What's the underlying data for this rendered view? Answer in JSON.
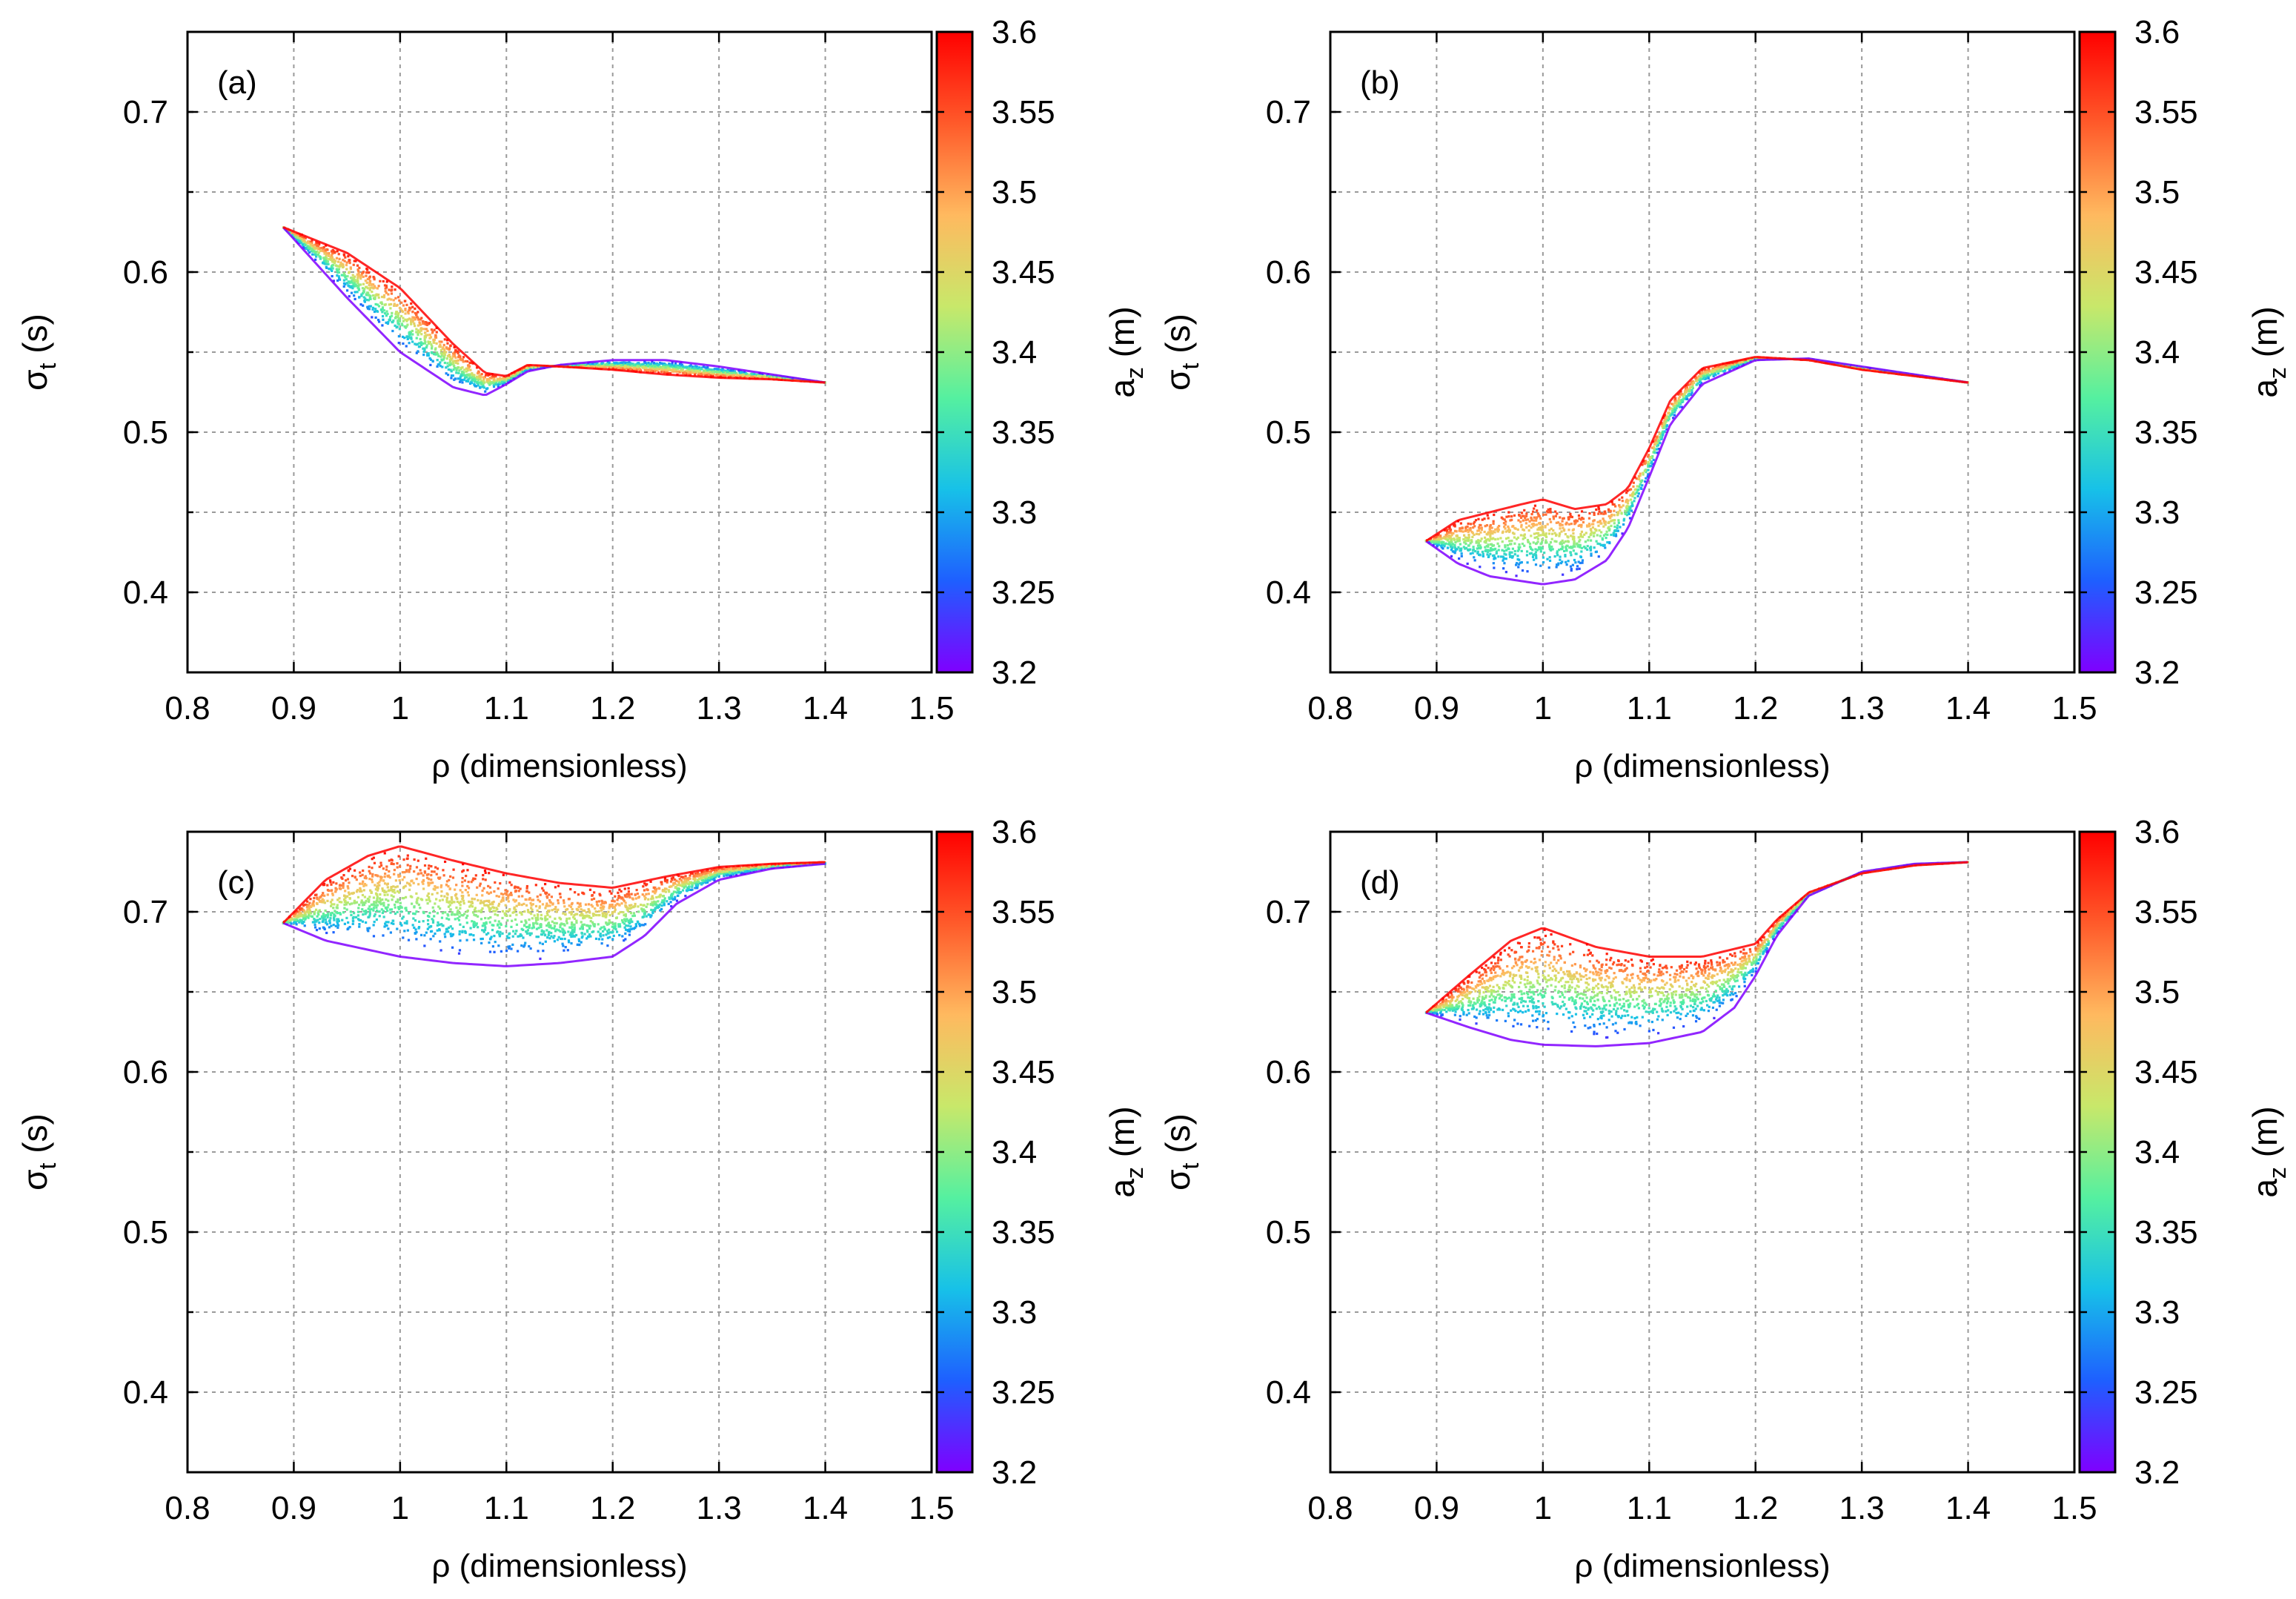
{
  "figure": {
    "panel_count": 4,
    "color_scale": "rainbow",
    "colorscale_stops": [
      "#7f00ff",
      "#1e5fff",
      "#17c1e8",
      "#55f0a0",
      "#c8e86a",
      "#ffb95f",
      "#ff5a2a",
      "#ff0000"
    ]
  },
  "chart_data": [
    {
      "type": "scatter",
      "panel_label": "(a)",
      "xlabel": "ρ (dimensionless)",
      "ylabel": "σt (s)",
      "ylabel_main": "σ",
      "ylabel_sub": "t",
      "ylabel_unit": " (s)",
      "xlim": [
        0.8,
        1.5
      ],
      "ylim": [
        0.35,
        0.75
      ],
      "xticks": [
        0.8,
        0.9,
        1.0,
        1.1,
        1.2,
        1.3,
        1.4,
        1.5
      ],
      "xtick_labels": [
        "0.8",
        "0.9",
        "1",
        "1.1",
        "1.2",
        "1.3",
        "1.4",
        "1.5"
      ],
      "yticks": [
        0.4,
        0.5,
        0.6,
        0.7
      ],
      "ytick_labels": [
        "0.4",
        "0.5",
        "0.6",
        "0.7"
      ],
      "colorbar": {
        "label": "az (m)",
        "label_main": "a",
        "label_sub": "z",
        "label_unit": " (m)",
        "range": [
          3.2,
          3.6
        ],
        "ticks": [
          3.2,
          3.25,
          3.3,
          3.35,
          3.4,
          3.45,
          3.5,
          3.55,
          3.6
        ],
        "tick_labels": [
          "3.2",
          "3.25",
          "3.3",
          "3.35",
          "3.4",
          "3.45",
          "3.5",
          "3.55",
          "3.6"
        ]
      },
      "series": [
        {
          "name": "az = 3.2 m (lower edge)",
          "az": 3.2,
          "x": [
            0.89,
            0.95,
            1.0,
            1.05,
            1.08,
            1.1,
            1.12,
            1.15,
            1.2,
            1.25,
            1.3,
            1.35,
            1.4
          ],
          "y": [
            0.628,
            0.584,
            0.55,
            0.528,
            0.523,
            0.53,
            0.538,
            0.542,
            0.545,
            0.545,
            0.541,
            0.536,
            0.531
          ]
        },
        {
          "name": "az = 3.6 m (upper edge)",
          "az": 3.6,
          "x": [
            0.89,
            0.95,
            1.0,
            1.05,
            1.08,
            1.1,
            1.12,
            1.15,
            1.2,
            1.25,
            1.3,
            1.35,
            1.4
          ],
          "y": [
            0.628,
            0.612,
            0.59,
            0.555,
            0.537,
            0.535,
            0.542,
            0.541,
            0.539,
            0.536,
            0.534,
            0.533,
            0.531
          ]
        }
      ]
    },
    {
      "type": "scatter",
      "panel_label": "(b)",
      "xlabel": "ρ (dimensionless)",
      "ylabel": "σt (s)",
      "ylabel_main": "σ",
      "ylabel_sub": "t",
      "ylabel_unit": " (s)",
      "xlim": [
        0.8,
        1.5
      ],
      "ylim": [
        0.35,
        0.75
      ],
      "xticks": [
        0.8,
        0.9,
        1.0,
        1.1,
        1.2,
        1.3,
        1.4,
        1.5
      ],
      "xtick_labels": [
        "0.8",
        "0.9",
        "1",
        "1.1",
        "1.2",
        "1.3",
        "1.4",
        "1.5"
      ],
      "yticks": [
        0.4,
        0.5,
        0.6,
        0.7
      ],
      "ytick_labels": [
        "0.4",
        "0.5",
        "0.6",
        "0.7"
      ],
      "colorbar": {
        "label": "az (m)",
        "label_main": "a",
        "label_sub": "z",
        "label_unit": " (m)",
        "range": [
          3.2,
          3.6
        ],
        "ticks": [
          3.2,
          3.25,
          3.3,
          3.35,
          3.4,
          3.45,
          3.5,
          3.55,
          3.6
        ],
        "tick_labels": [
          "3.2",
          "3.25",
          "3.3",
          "3.35",
          "3.4",
          "3.45",
          "3.5",
          "3.55",
          "3.6"
        ]
      },
      "series": [
        {
          "name": "az = 3.2 m (lower edge)",
          "az": 3.2,
          "x": [
            0.89,
            0.92,
            0.95,
            1.0,
            1.03,
            1.06,
            1.08,
            1.1,
            1.12,
            1.15,
            1.2,
            1.25,
            1.3,
            1.35,
            1.4
          ],
          "y": [
            0.432,
            0.418,
            0.41,
            0.405,
            0.408,
            0.42,
            0.44,
            0.472,
            0.505,
            0.53,
            0.545,
            0.546,
            0.541,
            0.536,
            0.531
          ]
        },
        {
          "name": "az = 3.6 m (upper edge)",
          "az": 3.6,
          "x": [
            0.89,
            0.92,
            0.95,
            0.98,
            1.0,
            1.03,
            1.06,
            1.08,
            1.1,
            1.12,
            1.15,
            1.2,
            1.25,
            1.3,
            1.35,
            1.4
          ],
          "y": [
            0.432,
            0.445,
            0.45,
            0.455,
            0.458,
            0.452,
            0.455,
            0.465,
            0.49,
            0.52,
            0.54,
            0.547,
            0.545,
            0.539,
            0.535,
            0.531
          ]
        }
      ]
    },
    {
      "type": "scatter",
      "panel_label": "(c)",
      "xlabel": "ρ (dimensionless)",
      "ylabel": "σt (s)",
      "ylabel_main": "σ",
      "ylabel_sub": "t",
      "ylabel_unit": " (s)",
      "xlim": [
        0.8,
        1.5
      ],
      "ylim": [
        0.35,
        0.75
      ],
      "xticks": [
        0.8,
        0.9,
        1.0,
        1.1,
        1.2,
        1.3,
        1.4,
        1.5
      ],
      "xtick_labels": [
        "0.8",
        "0.9",
        "1",
        "1.1",
        "1.2",
        "1.3",
        "1.4",
        "1.5"
      ],
      "yticks": [
        0.4,
        0.5,
        0.6,
        0.7
      ],
      "ytick_labels": [
        "0.4",
        "0.5",
        "0.6",
        "0.7"
      ],
      "colorbar": {
        "label": "az (m)",
        "label_main": "a",
        "label_sub": "z",
        "label_unit": " (m)",
        "range": [
          3.2,
          3.6
        ],
        "ticks": [
          3.2,
          3.25,
          3.3,
          3.35,
          3.4,
          3.45,
          3.5,
          3.55,
          3.6
        ],
        "tick_labels": [
          "3.2",
          "3.25",
          "3.3",
          "3.35",
          "3.4",
          "3.45",
          "3.5",
          "3.55",
          "3.6"
        ]
      },
      "series": [
        {
          "name": "az = 3.2 m (lower edge)",
          "az": 3.2,
          "x": [
            0.89,
            0.93,
            1.0,
            1.05,
            1.1,
            1.15,
            1.2,
            1.23,
            1.26,
            1.3,
            1.35,
            1.4
          ],
          "y": [
            0.693,
            0.682,
            0.672,
            0.668,
            0.666,
            0.668,
            0.672,
            0.685,
            0.705,
            0.72,
            0.727,
            0.73
          ]
        },
        {
          "name": "az = 3.6 m (upper edge)",
          "az": 3.6,
          "x": [
            0.89,
            0.93,
            0.97,
            1.0,
            1.05,
            1.1,
            1.15,
            1.2,
            1.25,
            1.3,
            1.35,
            1.4
          ],
          "y": [
            0.693,
            0.72,
            0.735,
            0.741,
            0.732,
            0.724,
            0.718,
            0.715,
            0.722,
            0.728,
            0.73,
            0.731
          ]
        }
      ]
    },
    {
      "type": "scatter",
      "panel_label": "(d)",
      "xlabel": "ρ (dimensionless)",
      "ylabel": "σt (s)",
      "ylabel_main": "σ",
      "ylabel_sub": "t",
      "ylabel_unit": " (s)",
      "xlim": [
        0.8,
        1.5
      ],
      "ylim": [
        0.35,
        0.75
      ],
      "xticks": [
        0.8,
        0.9,
        1.0,
        1.1,
        1.2,
        1.3,
        1.4,
        1.5
      ],
      "xtick_labels": [
        "0.8",
        "0.9",
        "1",
        "1.1",
        "1.2",
        "1.3",
        "1.4",
        "1.5"
      ],
      "yticks": [
        0.4,
        0.5,
        0.6,
        0.7
      ],
      "ytick_labels": [
        "0.4",
        "0.5",
        "0.6",
        "0.7"
      ],
      "colorbar": {
        "label": "az (m)",
        "label_main": "a",
        "label_sub": "z",
        "label_unit": " (m)",
        "range": [
          3.2,
          3.6
        ],
        "ticks": [
          3.2,
          3.25,
          3.3,
          3.35,
          3.4,
          3.45,
          3.5,
          3.55,
          3.6
        ],
        "tick_labels": [
          "3.2",
          "3.25",
          "3.3",
          "3.35",
          "3.4",
          "3.45",
          "3.5",
          "3.55",
          "3.6"
        ]
      },
      "series": [
        {
          "name": "az = 3.2 m (lower edge)",
          "az": 3.2,
          "x": [
            0.89,
            0.93,
            0.97,
            1.0,
            1.05,
            1.1,
            1.15,
            1.18,
            1.2,
            1.22,
            1.25,
            1.3,
            1.35,
            1.4
          ],
          "y": [
            0.637,
            0.628,
            0.62,
            0.617,
            0.616,
            0.618,
            0.625,
            0.64,
            0.66,
            0.685,
            0.71,
            0.725,
            0.73,
            0.731
          ]
        },
        {
          "name": "az = 3.6 m (upper edge)",
          "az": 3.6,
          "x": [
            0.89,
            0.93,
            0.97,
            1.0,
            1.05,
            1.1,
            1.15,
            1.2,
            1.22,
            1.25,
            1.3,
            1.35,
            1.4
          ],
          "y": [
            0.637,
            0.66,
            0.682,
            0.69,
            0.678,
            0.672,
            0.672,
            0.68,
            0.695,
            0.712,
            0.724,
            0.729,
            0.731
          ]
        }
      ]
    }
  ]
}
